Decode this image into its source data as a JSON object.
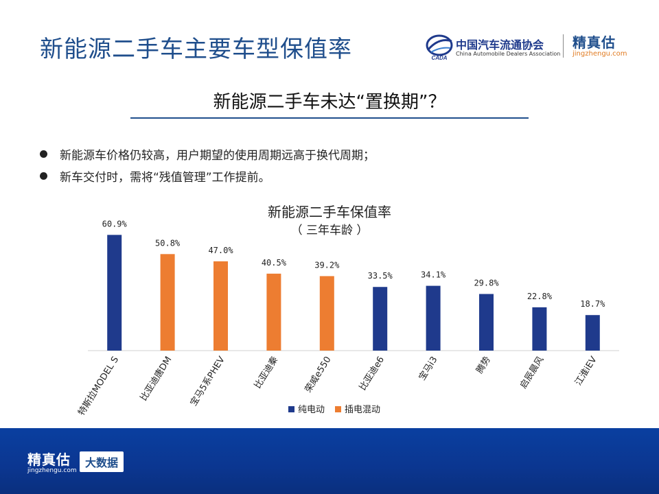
{
  "page": {
    "title": "新能源二手车主要车型保值率",
    "subtitle": "新能源二手车未达“置换期”？",
    "bullets": [
      "新能源车价格仍较高，用户期望的使用周期远高于换代周期；",
      "新车交付时，需将“残值管理”工作提前。"
    ]
  },
  "logos": {
    "caada_cn": "中国汽车流通协会",
    "caada_en": "China Automobile Dealers Association",
    "caada_emblem_text": "CADA",
    "jzg_brand": "精真估",
    "jzg_url": "jingzhengu.com"
  },
  "footer": {
    "brand": "精真估",
    "url": "jingzhengu.com",
    "tag": "大数据"
  },
  "colors": {
    "title": "#1f4e8c",
    "bev": "#1f3a8c",
    "phev": "#ed7d31",
    "footer": "#0b3a98"
  },
  "chart_data": {
    "type": "bar",
    "title": "新能源二手车保值率",
    "subtitle": "（ 三年车龄 ）",
    "categories": [
      "特斯拉MODEL S",
      "比亚迪唐DM",
      "宝马5系PHEV",
      "比亚迪秦",
      "荣威e550",
      "比亚迪e6",
      "宝马i3",
      "腾势",
      "启辰晨风",
      "江淮iEV"
    ],
    "values": [
      60.9,
      50.8,
      47.0,
      40.5,
      39.2,
      33.5,
      34.1,
      29.8,
      22.8,
      18.7
    ],
    "value_labels": [
      "60.9%",
      "50.8%",
      "47.0%",
      "40.5%",
      "39.2%",
      "33.5%",
      "34.1%",
      "29.8%",
      "22.8%",
      "18.7%"
    ],
    "series_index": [
      0,
      1,
      1,
      1,
      1,
      0,
      0,
      0,
      0,
      0
    ],
    "series": [
      {
        "name": "纯电动",
        "color": "#1f3a8c"
      },
      {
        "name": "插电混动",
        "color": "#ed7d31"
      }
    ],
    "ylim": [
      0,
      65
    ],
    "grid": false,
    "legend": "bottom-center"
  }
}
